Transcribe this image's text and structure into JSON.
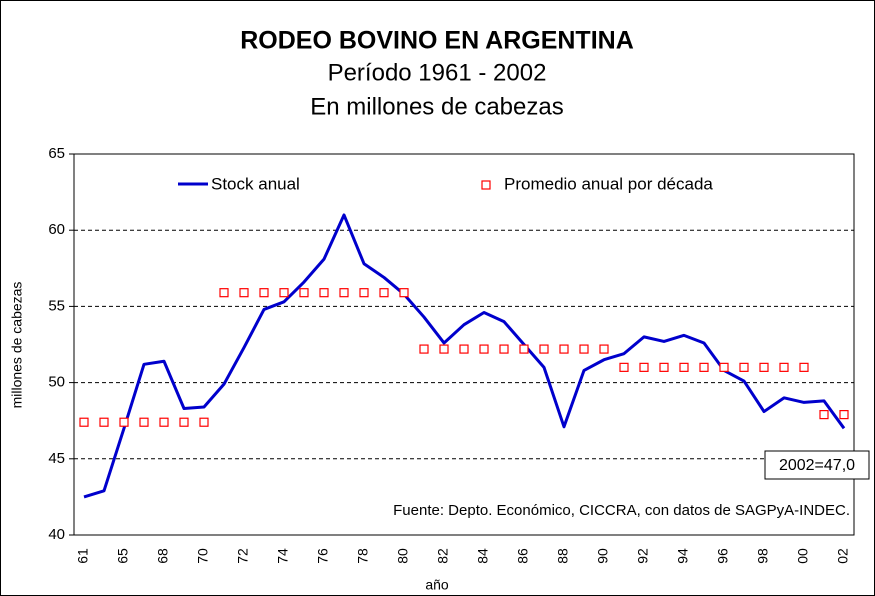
{
  "chart_data": {
    "type": "line",
    "title": "RODEO BOVINO EN ARGENTINA",
    "subtitle": [
      "Período 1961 - 2002",
      "En millones de cabezas"
    ],
    "x_label": "año",
    "y_label": "millones de cabezas",
    "categories": [
      "61",
      null,
      "65",
      null,
      "68",
      null,
      "70",
      null,
      "72",
      null,
      "74",
      null,
      "76",
      null,
      "78",
      null,
      "80",
      null,
      "82",
      null,
      "84",
      null,
      "86",
      null,
      "88",
      null,
      "90",
      null,
      "92",
      null,
      "94",
      null,
      "96",
      null,
      "98",
      null,
      "00",
      null,
      "02"
    ],
    "series": [
      {
        "name": "Stock anual",
        "color": "#0000cc",
        "style": "line",
        "values": [
          42.5,
          42.9,
          47.0,
          51.2,
          51.4,
          48.3,
          48.4,
          49.9,
          52.3,
          54.8,
          55.3,
          56.6,
          58.1,
          61.0,
          57.8,
          56.9,
          55.8,
          54.3,
          52.6,
          53.8,
          54.6,
          54.0,
          52.5,
          51.0,
          47.1,
          50.8,
          51.5,
          51.9,
          53.0,
          52.7,
          53.1,
          52.6,
          50.8,
          50.1,
          48.1,
          49.0,
          48.7,
          48.8,
          47.0
        ]
      },
      {
        "name": "Promedio anual por década",
        "color": "#ff0000",
        "style": "marker",
        "values": [
          47.4,
          47.4,
          47.4,
          47.4,
          47.4,
          47.4,
          47.4,
          55.9,
          55.9,
          55.9,
          55.9,
          55.9,
          55.9,
          55.9,
          55.9,
          55.9,
          55.9,
          52.2,
          52.2,
          52.2,
          52.2,
          52.2,
          52.2,
          52.2,
          52.2,
          52.2,
          52.2,
          51.0,
          51.0,
          51.0,
          51.0,
          51.0,
          51.0,
          51.0,
          51.0,
          51.0,
          51.0,
          47.9,
          47.9
        ]
      }
    ],
    "ylim": [
      40,
      65
    ],
    "yticks": [
      40,
      45,
      50,
      55,
      60,
      65
    ],
    "grid": true,
    "annotations": [
      "2002=47,0",
      "Fuente: Depto. Económico, CICCRA, con datos de SAGPyA-INDEC."
    ]
  }
}
